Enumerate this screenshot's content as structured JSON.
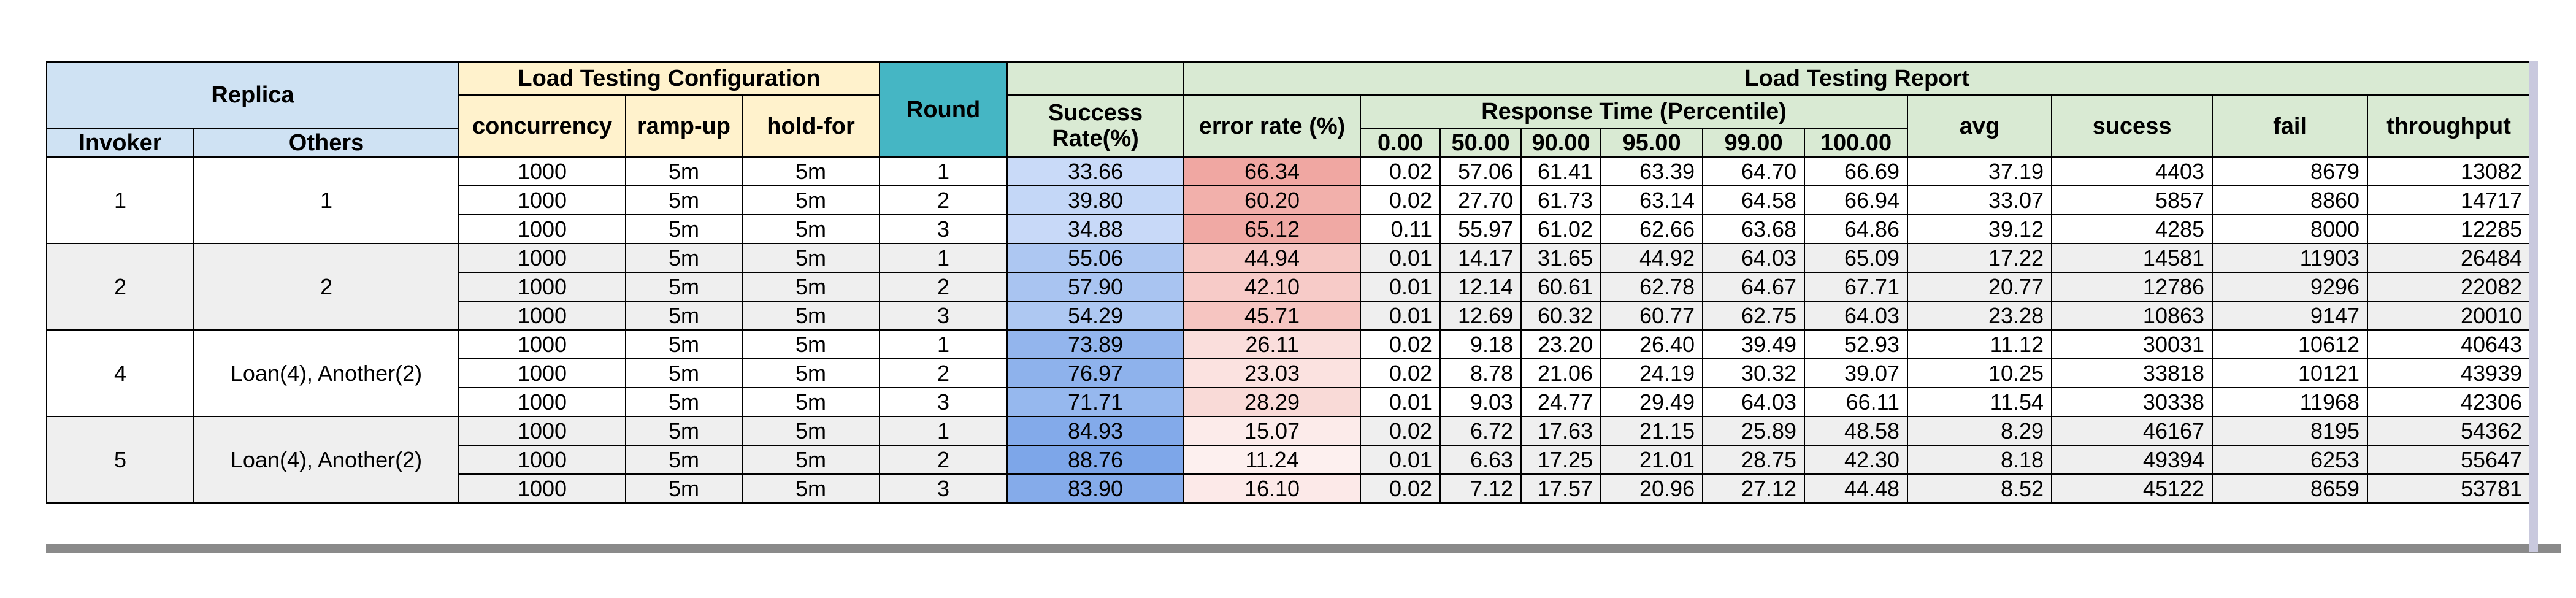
{
  "headers": {
    "replica": "Replica",
    "invoker": "Invoker",
    "others": "Others",
    "config": "Load Testing Configuration",
    "concurrency": "concurrency",
    "rampup": "ramp-up",
    "holdfor": "hold-for",
    "round": "Round",
    "report": "Load Testing Report",
    "success_rate": "Success Rate(%)",
    "error_rate": "error rate (%)",
    "response_time": "Response Time (Percentile)",
    "p0": "0.00",
    "p50": "50.00",
    "p90": "90.00",
    "p95": "95.00",
    "p99": "99.00",
    "p100": "100.00",
    "avg": "avg",
    "sucess": "sucess",
    "fail": "fail",
    "throughput": "throughput"
  },
  "groups": [
    {
      "invoker": "1",
      "others": "1"
    },
    {
      "invoker": "2",
      "others": "2"
    },
    {
      "invoker": "4",
      "others": "Loan(4), Another(2)"
    },
    {
      "invoker": "5",
      "others": "Loan(4), Another(2)"
    }
  ],
  "rows": [
    {
      "concurrency": "1000",
      "rampup": "5m",
      "holdfor": "5m",
      "round": "1",
      "success": "33.66",
      "error": "66.34",
      "p0": "0.02",
      "p50": "57.06",
      "p90": "61.41",
      "p95": "63.39",
      "p99": "64.70",
      "p100": "66.69",
      "avg": "37.19",
      "sucess": "4403",
      "fail": "8679",
      "throughput": "13082",
      "success_color": "#c9daf8",
      "error_color": "#f0a7a2"
    },
    {
      "concurrency": "1000",
      "rampup": "5m",
      "holdfor": "5m",
      "round": "2",
      "success": "39.80",
      "error": "60.20",
      "p0": "0.02",
      "p50": "27.70",
      "p90": "61.73",
      "p95": "63.14",
      "p99": "64.58",
      "p100": "66.94",
      "avg": "33.07",
      "sucess": "5857",
      "fail": "8860",
      "throughput": "14717",
      "success_color": "#c4d7f7",
      "error_color": "#f2b0ab"
    },
    {
      "concurrency": "1000",
      "rampup": "5m",
      "holdfor": "5m",
      "round": "3",
      "success": "34.88",
      "error": "65.12",
      "p0": "0.11",
      "p50": "55.97",
      "p90": "61.02",
      "p95": "62.66",
      "p99": "63.68",
      "p100": "64.86",
      "avg": "39.12",
      "sucess": "4285",
      "fail": "8000",
      "throughput": "12285",
      "success_color": "#c8d9f8",
      "error_color": "#f0a9a4"
    },
    {
      "concurrency": "1000",
      "rampup": "5m",
      "holdfor": "5m",
      "round": "1",
      "success": "55.06",
      "error": "44.94",
      "p0": "0.01",
      "p50": "14.17",
      "p90": "31.65",
      "p95": "44.92",
      "p99": "64.03",
      "p100": "65.09",
      "avg": "17.22",
      "sucess": "14581",
      "fail": "11903",
      "throughput": "26484",
      "success_color": "#adc7f2",
      "error_color": "#f6c7c3"
    },
    {
      "concurrency": "1000",
      "rampup": "5m",
      "holdfor": "5m",
      "round": "2",
      "success": "57.90",
      "error": "42.10",
      "p0": "0.01",
      "p50": "12.14",
      "p90": "60.61",
      "p95": "62.78",
      "p99": "64.67",
      "p100": "67.71",
      "avg": "20.77",
      "sucess": "12786",
      "fail": "9296",
      "throughput": "22082",
      "success_color": "#a9c4f1",
      "error_color": "#f7cbc8"
    },
    {
      "concurrency": "1000",
      "rampup": "5m",
      "holdfor": "5m",
      "round": "3",
      "success": "54.29",
      "error": "45.71",
      "p0": "0.01",
      "p50": "12.69",
      "p90": "60.32",
      "p95": "60.77",
      "p99": "62.75",
      "p100": "64.03",
      "avg": "23.28",
      "sucess": "10863",
      "fail": "9147",
      "throughput": "20010",
      "success_color": "#aec8f2",
      "error_color": "#f6c5c1"
    },
    {
      "concurrency": "1000",
      "rampup": "5m",
      "holdfor": "5m",
      "round": "1",
      "success": "73.89",
      "error": "26.11",
      "p0": "0.02",
      "p50": "9.18",
      "p90": "23.20",
      "p95": "26.40",
      "p99": "39.49",
      "p100": "52.93",
      "avg": "11.12",
      "sucess": "30031",
      "fail": "10612",
      "throughput": "40643",
      "success_color": "#93b5ed",
      "error_color": "#fadedc"
    },
    {
      "concurrency": "1000",
      "rampup": "5m",
      "holdfor": "5m",
      "round": "2",
      "success": "76.97",
      "error": "23.03",
      "p0": "0.02",
      "p50": "8.78",
      "p90": "21.06",
      "p95": "24.19",
      "p99": "30.32",
      "p100": "39.07",
      "avg": "10.25",
      "sucess": "33818",
      "fail": "10121",
      "throughput": "43939",
      "success_color": "#8eb2ec",
      "error_color": "#fbe2e0"
    },
    {
      "concurrency": "1000",
      "rampup": "5m",
      "holdfor": "5m",
      "round": "3",
      "success": "71.71",
      "error": "28.29",
      "p0": "0.01",
      "p50": "9.03",
      "p90": "24.77",
      "p95": "29.49",
      "p99": "64.03",
      "p100": "66.11",
      "avg": "11.54",
      "sucess": "30338",
      "fail": "11968",
      "throughput": "42306",
      "success_color": "#96b8ee",
      "error_color": "#f9dad7"
    },
    {
      "concurrency": "1000",
      "rampup": "5m",
      "holdfor": "5m",
      "round": "1",
      "success": "84.93",
      "error": "15.07",
      "p0": "0.02",
      "p50": "6.72",
      "p90": "17.63",
      "p95": "21.15",
      "p99": "25.89",
      "p100": "48.58",
      "avg": "8.29",
      "sucess": "46167",
      "fail": "8195",
      "throughput": "54362",
      "success_color": "#83aaea",
      "error_color": "#fcebea"
    },
    {
      "concurrency": "1000",
      "rampup": "5m",
      "holdfor": "5m",
      "round": "2",
      "success": "88.76",
      "error": "11.24",
      "p0": "0.01",
      "p50": "6.63",
      "p90": "17.25",
      "p95": "21.01",
      "p99": "28.75",
      "p100": "42.30",
      "avg": "8.18",
      "sucess": "49394",
      "fail": "6253",
      "throughput": "55647",
      "success_color": "#7da6e9",
      "error_color": "#fdf0ef"
    },
    {
      "concurrency": "1000",
      "rampup": "5m",
      "holdfor": "5m",
      "round": "3",
      "success": "83.90",
      "error": "16.10",
      "p0": "0.02",
      "p50": "7.12",
      "p90": "17.57",
      "p95": "20.96",
      "p99": "27.12",
      "p100": "44.48",
      "avg": "8.52",
      "sucess": "45122",
      "fail": "8659",
      "throughput": "53781",
      "success_color": "#85abea",
      "error_color": "#fce9e8"
    }
  ]
}
